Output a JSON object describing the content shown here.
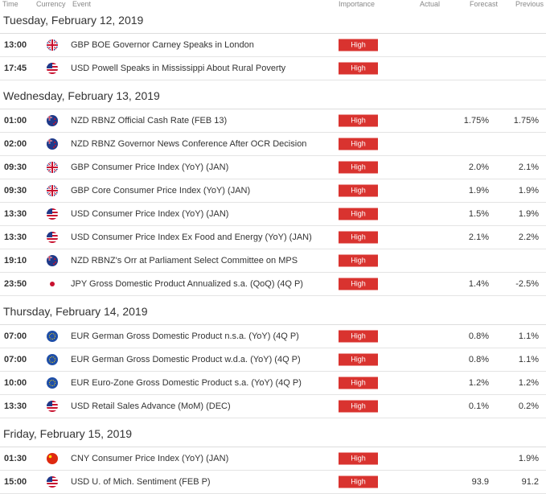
{
  "header": {
    "columns": [
      "Time",
      "Currency",
      "Event",
      "Importance",
      "Actual",
      "Forecast",
      "Previous"
    ]
  },
  "days": [
    {
      "title": "Tuesday, February 12, 2019",
      "rows": [
        {
          "time": "13:00",
          "event": "GBP BOE Governor Carney Speaks in London",
          "importance": "High"
        },
        {
          "time": "17:45",
          "event": "USD Powell Speaks in Mississippi About Rural Poverty",
          "importance": "High"
        }
      ]
    },
    {
      "title": "Wednesday, February 13, 2019",
      "rows": [
        {
          "time": "01:00",
          "event": "NZD RBNZ Official Cash Rate (FEB 13)",
          "importance": "High",
          "forecast": "1.75%",
          "previous": "1.75%"
        },
        {
          "time": "02:00",
          "event": "NZD RBNZ Governor News Conference After OCR Decision",
          "importance": "High"
        },
        {
          "time": "09:30",
          "event": "GBP Consumer Price Index (YoY) (JAN)",
          "importance": "High",
          "forecast": "2.0%",
          "previous": "2.1%"
        },
        {
          "time": "09:30",
          "event": "GBP Core Consumer Price Index (YoY) (JAN)",
          "importance": "High",
          "forecast": "1.9%",
          "previous": "1.9%"
        },
        {
          "time": "13:30",
          "event": "USD Consumer Price Index (YoY) (JAN)",
          "importance": "High",
          "forecast": "1.5%",
          "previous": "1.9%"
        },
        {
          "time": "13:30",
          "event": "USD Consumer Price Index Ex Food and Energy (YoY) (JAN)",
          "importance": "High",
          "forecast": "2.1%",
          "previous": "2.2%"
        },
        {
          "time": "19:10",
          "event": "NZD RBNZ's Orr at Parliament Select Committee on MPS",
          "importance": "High"
        },
        {
          "time": "23:50",
          "event": "JPY Gross Domestic Product Annualized s.a. (QoQ) (4Q P)",
          "importance": "High",
          "forecast": "1.4%",
          "previous": "-2.5%"
        }
      ]
    },
    {
      "title": "Thursday, February 14, 2019",
      "rows": [
        {
          "time": "07:00",
          "event": "EUR German Gross Domestic Product n.s.a. (YoY) (4Q P)",
          "importance": "High",
          "forecast": "0.8%",
          "previous": "1.1%"
        },
        {
          "time": "07:00",
          "event": "EUR German Gross Domestic Product w.d.a. (YoY) (4Q P)",
          "importance": "High",
          "forecast": "0.8%",
          "previous": "1.1%"
        },
        {
          "time": "10:00",
          "event": "EUR Euro-Zone Gross Domestic Product s.a. (YoY) (4Q P)",
          "importance": "High",
          "forecast": "1.2%",
          "previous": "1.2%"
        },
        {
          "time": "13:30",
          "event": "USD Retail Sales Advance (MoM) (DEC)",
          "importance": "High",
          "forecast": "0.1%",
          "previous": "0.2%"
        }
      ]
    },
    {
      "title": "Friday, February 15, 2019",
      "rows": [
        {
          "time": "01:30",
          "event": "CNY Consumer Price Index (YoY) (JAN)",
          "importance": "High",
          "previous": "1.9%"
        },
        {
          "time": "15:00",
          "event": "USD U. of Mich. Sentiment (FEB P)",
          "importance": "High",
          "forecast": "93.9",
          "previous": "91.2"
        }
      ]
    }
  ]
}
